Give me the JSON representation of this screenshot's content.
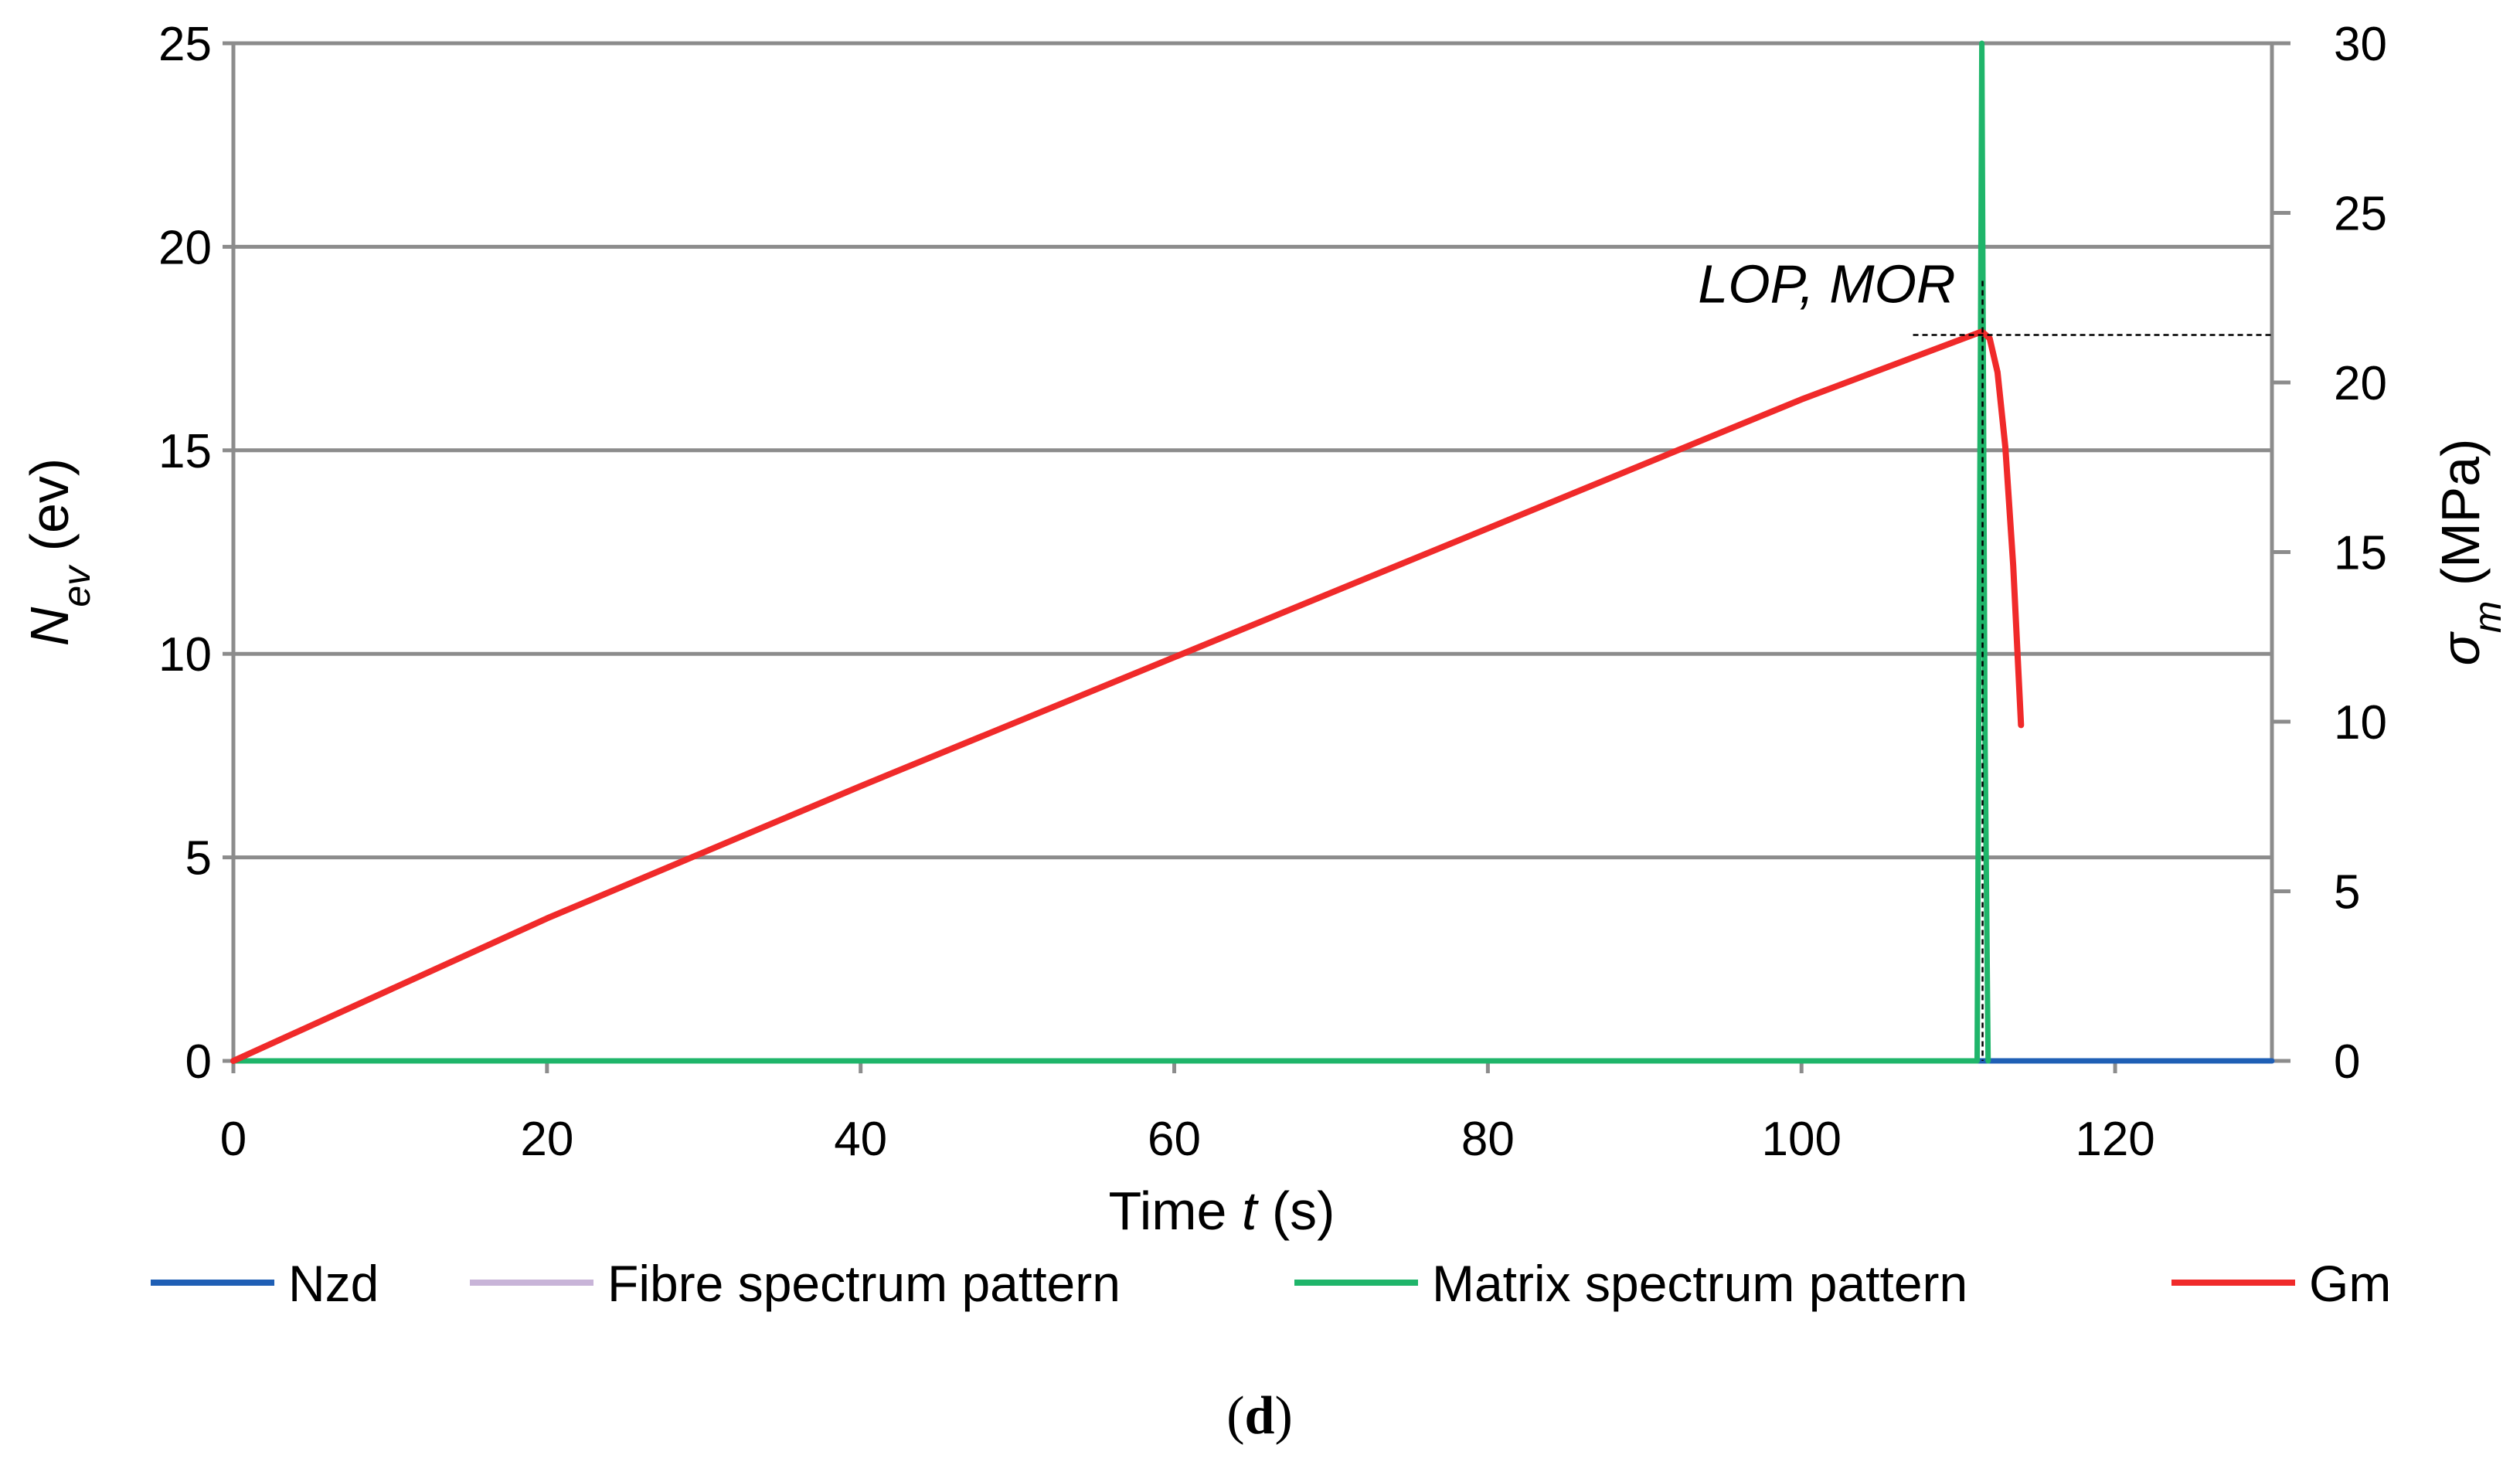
{
  "chart_data": {
    "type": "line",
    "xlabel": {
      "prefix": "Time ",
      "var": "t",
      "suffix": " (s)"
    },
    "ylabel_left": {
      "var": "N",
      "sub": "ev",
      "suffix": " (ev)"
    },
    "ylabel_right": {
      "var": "σ",
      "sub": "m",
      "suffix": " (MPa)"
    },
    "xlim": [
      0,
      130
    ],
    "ylim_left": [
      0,
      25
    ],
    "ylim_right": [
      0,
      30
    ],
    "x_ticks": [
      0,
      20,
      40,
      60,
      80,
      100,
      120
    ],
    "y_left_ticks": [
      0,
      5,
      10,
      15,
      20,
      25
    ],
    "y_right_ticks": [
      0,
      5,
      10,
      15,
      20,
      25,
      30
    ],
    "grid": true,
    "series": [
      {
        "name": "Nzd",
        "axis": "left",
        "color": "#1f5fb5",
        "x": [
          0,
          111.2,
          111.5,
          111.8,
          130
        ],
        "y": [
          0,
          0,
          0,
          0,
          0
        ]
      },
      {
        "name": "Fibre spectrum pattern",
        "axis": "left",
        "color": "#c8b4d8",
        "x": [
          0,
          111.2,
          130
        ],
        "y": [
          0,
          0,
          0
        ]
      },
      {
        "name": "Matrix spectrum pattern",
        "axis": "left",
        "color": "#1fb56a",
        "x": [
          0,
          111.2,
          111.35,
          111.5,
          111.7,
          111.9
        ],
        "y": [
          0,
          0,
          12,
          25,
          8,
          0
        ]
      },
      {
        "name": "Gm",
        "axis": "right",
        "color": "#f02a2a",
        "x": [
          0,
          20,
          40,
          60,
          80,
          100,
          111.5,
          112.0,
          112.5,
          113.0,
          113.5,
          114.0
        ],
        "y": [
          0,
          4.2,
          8.1,
          11.9,
          15.7,
          19.5,
          21.5,
          21.3,
          20.3,
          18.1,
          14.6,
          9.9
        ]
      }
    ],
    "annotations": [
      {
        "text": "LOP, MOR",
        "x": 111.3,
        "y_right": 21.4
      }
    ],
    "legend_position": "bottom"
  },
  "caption": {
    "open": "(",
    "letter": "d",
    "close": ")"
  }
}
